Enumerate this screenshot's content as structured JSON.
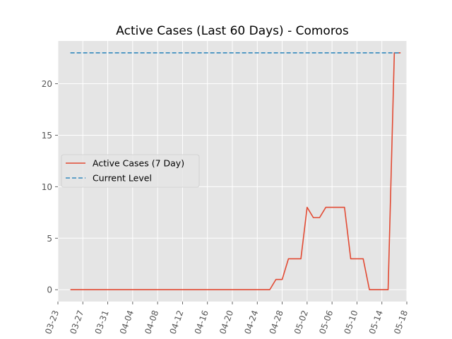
{
  "chart_data": {
    "type": "line",
    "title": "Active Cases (Last 60 Days) - Comoros",
    "xlabel": "",
    "ylabel": "",
    "x_ticks": [
      "03-23",
      "03-27",
      "03-31",
      "04-04",
      "04-08",
      "04-12",
      "04-16",
      "04-20",
      "04-24",
      "04-28",
      "05-02",
      "05-06",
      "05-10",
      "05-14",
      "05-18"
    ],
    "y_ticks": [
      0,
      5,
      10,
      15,
      20
    ],
    "xlim": [
      "03-23",
      "05-18"
    ],
    "ylim": [
      -1.15,
      24.15
    ],
    "grid": true,
    "legend_position": "center-left",
    "series": [
      {
        "name": "Active Cases (7 Day)",
        "style": "solid",
        "color": "#E24A33",
        "points": [
          [
            "03-25",
            0
          ],
          [
            "04-26",
            0
          ],
          [
            "04-27",
            1
          ],
          [
            "04-28",
            1
          ],
          [
            "04-29",
            3
          ],
          [
            "05-01",
            3
          ],
          [
            "05-02",
            8
          ],
          [
            "05-03",
            7
          ],
          [
            "05-04",
            7
          ],
          [
            "05-05",
            8
          ],
          [
            "05-08",
            8
          ],
          [
            "05-09",
            3
          ],
          [
            "05-11",
            3
          ],
          [
            "05-12",
            0
          ],
          [
            "05-15",
            0
          ],
          [
            "05-16",
            23
          ],
          [
            "05-17",
            23
          ]
        ]
      },
      {
        "name": "Current Level",
        "style": "dashed",
        "color": "#348ABD",
        "points": [
          [
            "03-25",
            23
          ],
          [
            "05-17",
            23
          ]
        ]
      }
    ]
  }
}
